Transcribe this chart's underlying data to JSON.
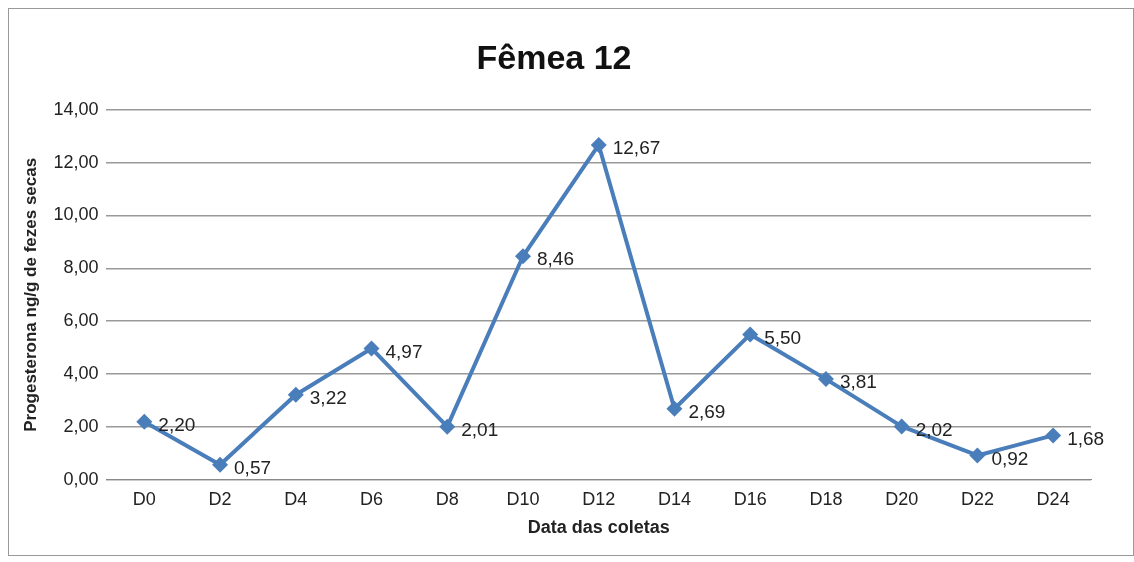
{
  "chart_data": {
    "type": "line",
    "title": "Fêmea 12",
    "xlabel": "Data das coletas",
    "ylabel": "Progesterona ng/g de fezes secas",
    "categories": [
      "D0",
      "D2",
      "D4",
      "D6",
      "D8",
      "D10",
      "D12",
      "D14",
      "D16",
      "D18",
      "D20",
      "D22",
      "D24"
    ],
    "values": [
      2.2,
      0.57,
      3.22,
      4.97,
      2.01,
      8.46,
      12.67,
      2.69,
      5.5,
      3.81,
      2.02,
      0.92,
      1.68
    ],
    "value_labels": [
      "2,20",
      "0,57",
      "3,22",
      "4,97",
      "2,01",
      "8,46",
      "12,67",
      "2,69",
      "5,50",
      "3,81",
      "2,02",
      "0,92",
      "1,68"
    ],
    "color": "#4a7ebb",
    "marker": "diamond",
    "grid": "y",
    "legend": false,
    "ylim": [
      0,
      14
    ],
    "yticks": [
      {
        "value": 0,
        "label": "0,00"
      },
      {
        "value": 2,
        "label": "2,00"
      },
      {
        "value": 4,
        "label": "4,00"
      },
      {
        "value": 6,
        "label": "6,00"
      },
      {
        "value": 8,
        "label": "8,00"
      },
      {
        "value": 10,
        "label": "10,00"
      },
      {
        "value": 12,
        "label": "12,00"
      },
      {
        "value": 14,
        "label": "14,00"
      }
    ]
  }
}
